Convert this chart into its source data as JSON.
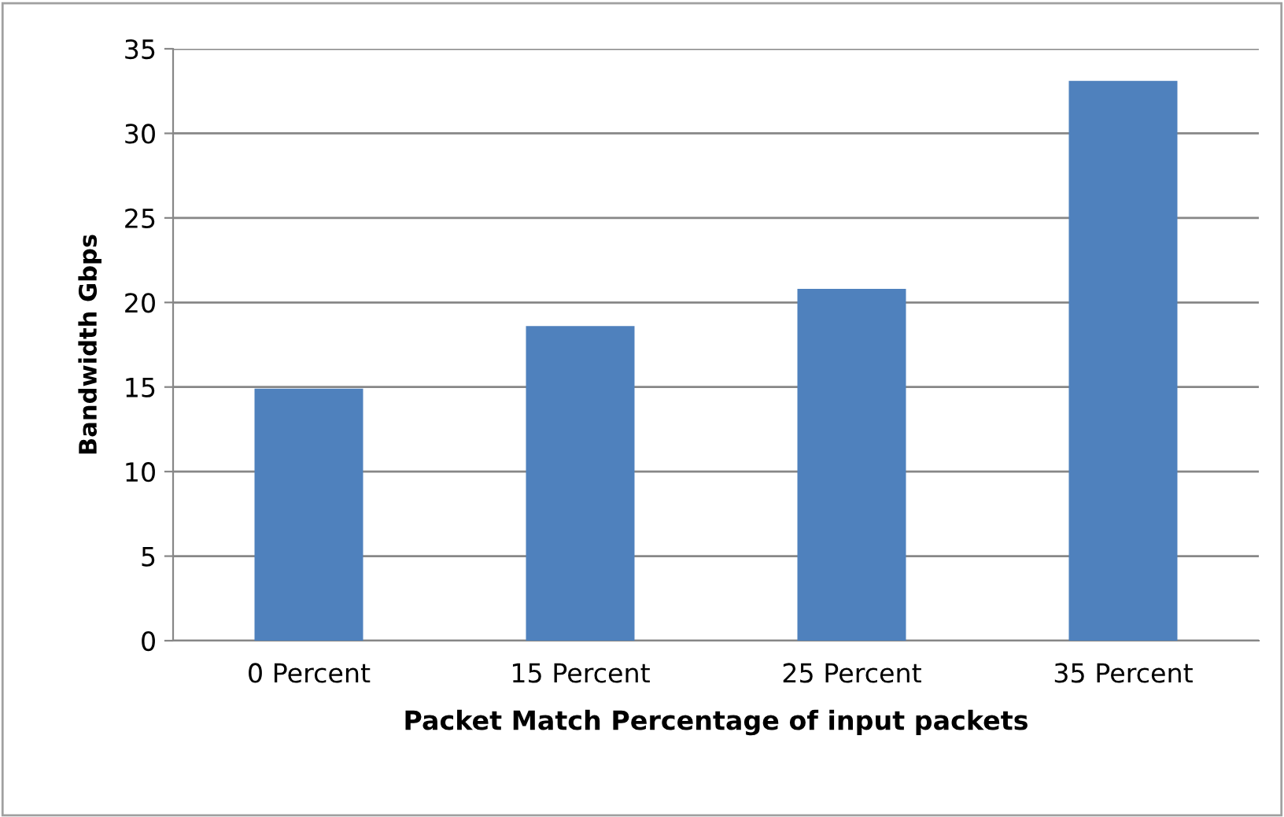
{
  "chart_data": {
    "type": "bar",
    "xlabel": "Packet Match Percentage of input packets",
    "ylabel": "Bandwidth Gbps",
    "categories": [
      "0 Percent",
      "15 Percent",
      "25 Percent",
      "35 Percent"
    ],
    "values": [
      14.9,
      18.6,
      20.8,
      33.1
    ],
    "color": "#4f81bd",
    "ylim": [
      0,
      35
    ],
    "yticks": [
      0,
      5,
      10,
      15,
      20,
      25,
      30,
      35
    ],
    "grid": "y"
  }
}
